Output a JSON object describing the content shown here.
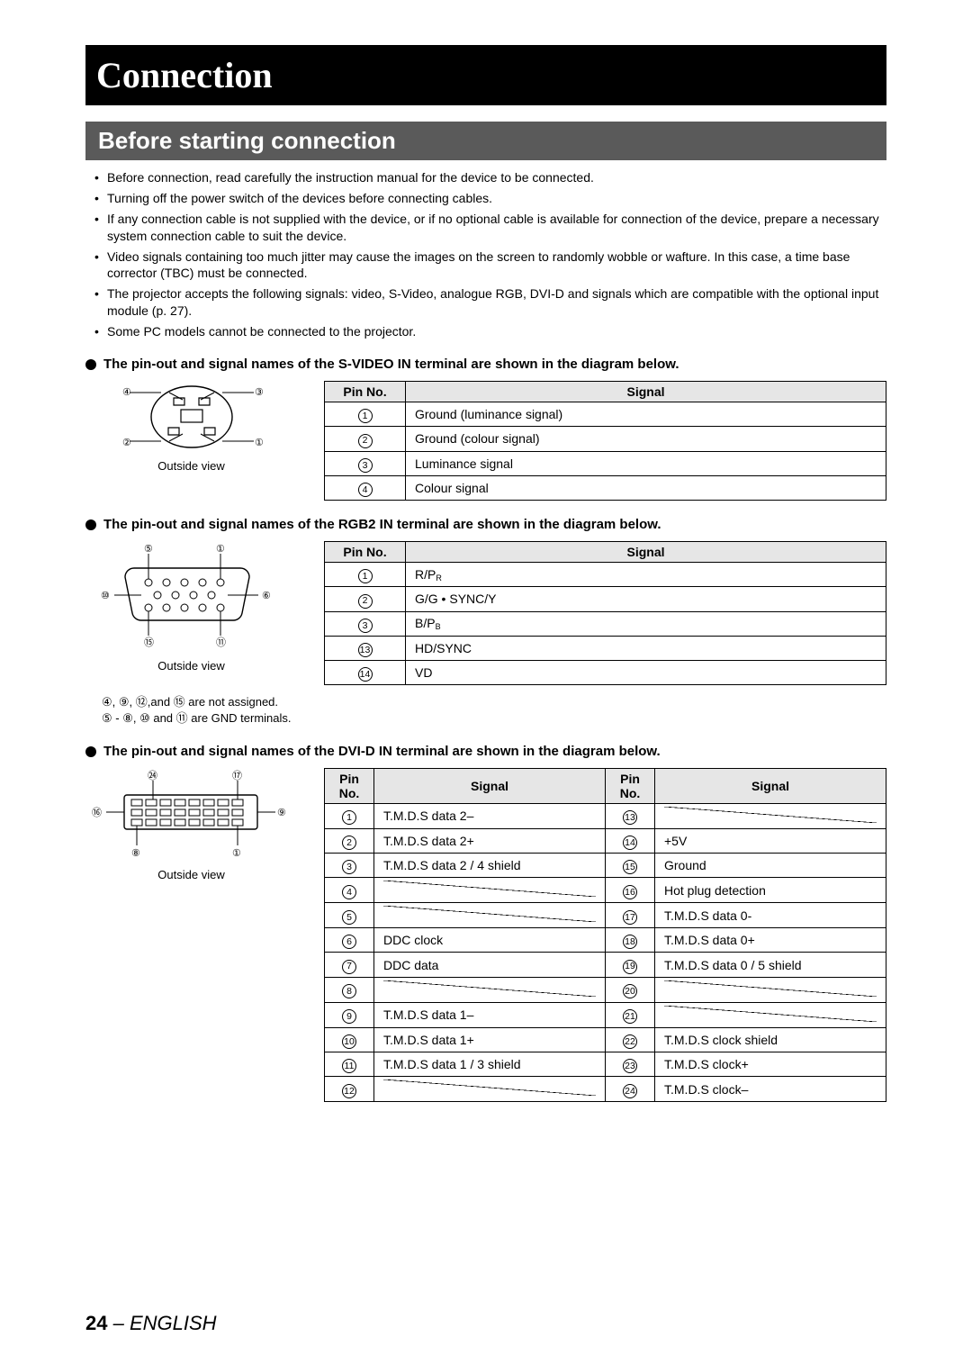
{
  "page": {
    "title": "Connection",
    "section": "Before starting connection",
    "number": "24",
    "lang": "ENGLISH"
  },
  "bullets": [
    "Before connection, read carefully the instruction manual for the device to be connected.",
    "Turning off the power switch of the devices before connecting cables.",
    "If any connection cable is not supplied with the device, or if no optional cable is available for connection of the device, prepare a necessary system connection cable to suit the device.",
    "Video signals containing too much jitter may cause the images on the screen to randomly wobble or wafture. In this case, a time base corrector (TBC) must be connected.",
    "The projector accepts the following signals: video, S-Video, analogue RGB, DVI-D and signals which are compatible with the optional input module (p. 27).",
    "Some PC models cannot be connected to the projector."
  ],
  "outside": "Outside view",
  "headers": {
    "pin": "Pin No.",
    "signal": "Signal"
  },
  "svideo": {
    "heading": "The pin-out and signal names of the S-VIDEO IN terminal are shown in the diagram below.",
    "rows": [
      {
        "n": "1",
        "sig": "Ground (luminance signal)"
      },
      {
        "n": "2",
        "sig": "Ground (colour signal)"
      },
      {
        "n": "3",
        "sig": "Luminance signal"
      },
      {
        "n": "4",
        "sig": "Colour signal"
      }
    ]
  },
  "rgb2": {
    "heading": "The pin-out and signal names of the RGB2 IN terminal are shown in the diagram below.",
    "rows": [
      {
        "n": "1",
        "sig": "R/P",
        "sub": "R"
      },
      {
        "n": "2",
        "sig": "G/G • SYNC/Y"
      },
      {
        "n": "3",
        "sig": "B/P",
        "sub": "B"
      },
      {
        "n": "13",
        "sig": "HD/SYNC"
      },
      {
        "n": "14",
        "sig": "VD"
      }
    ],
    "note1_a": "④, ⑨, ⑫,and ⑮ are not assigned.",
    "note1_b": "⑤ - ⑧, ⑩ and ⑪ are GND terminals."
  },
  "dvid": {
    "heading": "The pin-out and signal names of the DVI-D IN terminal are shown in the diagram below.",
    "left": [
      {
        "n": "1",
        "sig": "T.M.D.S data 2–"
      },
      {
        "n": "2",
        "sig": "T.M.D.S data 2+"
      },
      {
        "n": "3",
        "sig": "T.M.D.S data 2 / 4 shield",
        "rs": 2
      },
      {
        "n": "4",
        "sig": "",
        "slash": true,
        "skip": true
      },
      {
        "n": "5",
        "sig": "",
        "slash": true
      },
      {
        "n": "6",
        "sig": "DDC clock"
      },
      {
        "n": "7",
        "sig": "DDC data"
      },
      {
        "n": "8",
        "sig": "",
        "slash": true
      },
      {
        "n": "9",
        "sig": "T.M.D.S data 1–"
      },
      {
        "n": "10",
        "sig": "T.M.D.S data 1+"
      },
      {
        "n": "11",
        "sig": "T.M.D.S data 1 / 3 shield"
      },
      {
        "n": "12",
        "sig": "",
        "slash": true
      }
    ],
    "right": [
      {
        "n": "13",
        "sig": "",
        "slash": true
      },
      {
        "n": "14",
        "sig": "+5V"
      },
      {
        "n": "15",
        "sig": "Ground"
      },
      {
        "n": "16",
        "sig": "Hot plug detection"
      },
      {
        "n": "17",
        "sig": "T.M.D.S data 0-"
      },
      {
        "n": "18",
        "sig": "T.M.D.S data 0+"
      },
      {
        "n": "19",
        "sig": "T.M.D.S data 0 / 5 shield",
        "rs": 2
      },
      {
        "n": "20",
        "sig": "",
        "slash": true
      },
      {
        "n": "21",
        "sig": "",
        "slash": true
      },
      {
        "n": "22",
        "sig": "T.M.D.S clock shield"
      },
      {
        "n": "23",
        "sig": "T.M.D.S clock+"
      },
      {
        "n": "24",
        "sig": "T.M.D.S clock–"
      }
    ]
  }
}
